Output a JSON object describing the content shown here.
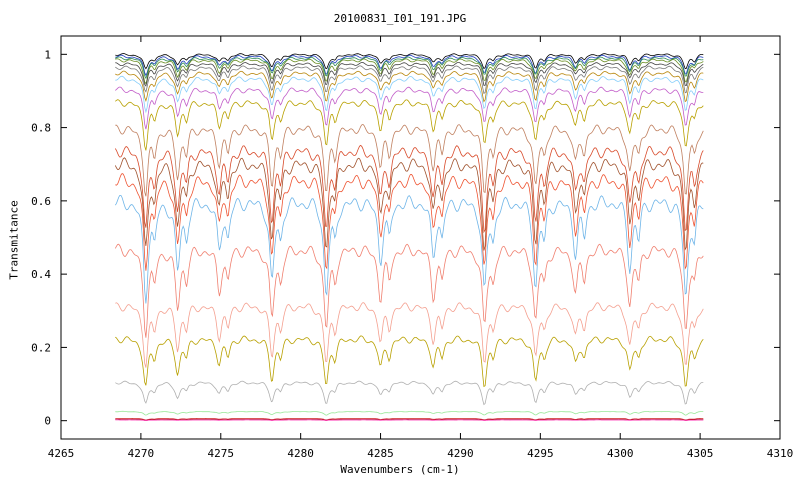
{
  "chart_data": {
    "type": "line",
    "title": "20100831_I01_191.JPG",
    "xlabel": "Wavenumbers (cm-1)",
    "ylabel": "Transmitance",
    "xlim": [
      4265,
      4310
    ],
    "ylim": [
      -0.05,
      1.05
    ],
    "x_ticks": [
      4265,
      4270,
      4275,
      4280,
      4285,
      4290,
      4295,
      4300,
      4305,
      4310
    ],
    "y_ticks": [
      0,
      0.2,
      0.4,
      0.6,
      0.8,
      1
    ],
    "y_tick_labels": [
      "0",
      "0.2",
      "0.4",
      "0.6",
      "0.8",
      "1"
    ],
    "grid": false,
    "legend": "none",
    "x_range_data": [
      4268.4,
      4305.2
    ],
    "absorption_lines_cm1": [
      4270.3,
      4272.3,
      4274.9,
      4278.2,
      4281.6,
      4285.0,
      4288.3,
      4291.5,
      4294.7,
      4297.2,
      4300.6,
      4304.1
    ],
    "series": [
      {
        "color": "#000000",
        "baseline": 1.0,
        "line_depth": 0.04
      },
      {
        "color": "#1f3fbf",
        "baseline": 0.995,
        "line_depth": 0.05
      },
      {
        "color": "#2e8b57",
        "baseline": 0.99,
        "line_depth": 0.05
      },
      {
        "color": "#6b8e23",
        "baseline": 0.985,
        "line_depth": 0.06
      },
      {
        "color": "#444444",
        "baseline": 0.975,
        "line_depth": 0.06
      },
      {
        "color": "#7a7a7a",
        "baseline": 0.965,
        "line_depth": 0.07
      },
      {
        "color": "#b8860b",
        "baseline": 0.95,
        "line_depth": 0.08
      },
      {
        "color": "#87cefa",
        "baseline": 0.935,
        "line_depth": 0.09
      },
      {
        "color": "#c25ec9",
        "baseline": 0.905,
        "line_depth": 0.1
      },
      {
        "color": "#b8a000",
        "baseline": 0.87,
        "line_depth": 0.12
      },
      {
        "color": "#c08060",
        "baseline": 0.8,
        "line_depth": 0.18
      },
      {
        "color": "#d84a2a",
        "baseline": 0.74,
        "line_depth": 0.22
      },
      {
        "color": "#a0522d",
        "baseline": 0.705,
        "line_depth": 0.24
      },
      {
        "color": "#ee5533",
        "baseline": 0.66,
        "line_depth": 0.25
      },
      {
        "color": "#6fb5e8",
        "baseline": 0.6,
        "line_depth": 0.26
      },
      {
        "color": "#f08070",
        "baseline": 0.47,
        "line_depth": 0.22
      },
      {
        "color": "#f4a090",
        "baseline": 0.315,
        "line_depth": 0.16
      },
      {
        "color": "#b8a000",
        "baseline": 0.225,
        "line_depth": 0.13
      },
      {
        "color": "#b0b0b0",
        "baseline": 0.105,
        "line_depth": 0.06
      },
      {
        "color": "#98e898",
        "baseline": 0.025,
        "line_depth": 0.01
      },
      {
        "color": "#cc2222",
        "baseline": 0.006,
        "line_depth": 0.004
      },
      {
        "color": "#8b0000",
        "baseline": 0.003,
        "line_depth": 0.002
      },
      {
        "color": "#ff2ab0",
        "baseline": 0.002,
        "line_depth": 0.001
      }
    ]
  }
}
